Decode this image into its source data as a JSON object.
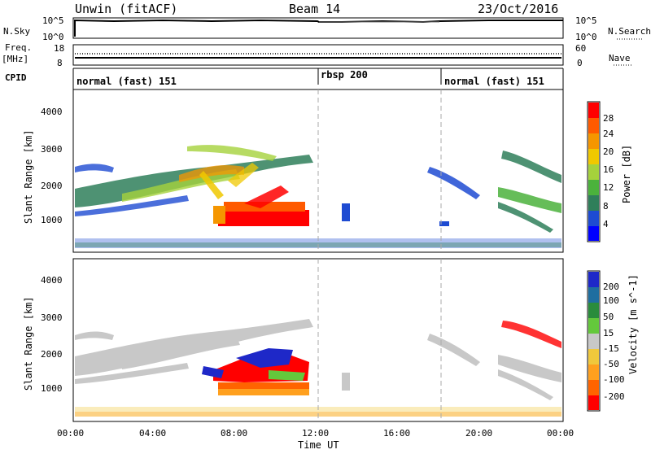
{
  "header": {
    "site": "Unwin (fitACF)",
    "beam": "Beam 14",
    "date": "23/Oct/2016"
  },
  "nsky_panel": {
    "left_label": "N.Sky",
    "right_label": "N.Search",
    "ticks_left": [
      "10^5",
      "10^0"
    ],
    "ticks_right": [
      "10^5",
      "10^0"
    ]
  },
  "freq_panel": {
    "left_label_top": "Freq.",
    "left_label_unit": "[MHz]",
    "right_label": "Nave",
    "ticks_left": [
      "18",
      "8"
    ],
    "ticks_right": [
      "60",
      "0"
    ]
  },
  "cpid_panel": {
    "label": "CPID",
    "segments": [
      {
        "start": 0,
        "end": 12,
        "text": "normal (fast) 151"
      },
      {
        "start": 12,
        "end": 18,
        "text": "rbsp 200"
      },
      {
        "start": 18,
        "end": 24,
        "text": "normal (fast) 151"
      }
    ]
  },
  "chart_data": [
    {
      "type": "heatmap",
      "title": "",
      "xlabel": "",
      "ylabel": "Slant Range [km]",
      "xlim": [
        0,
        24
      ],
      "ylim": [
        0,
        4600
      ],
      "yticks": [
        "1000",
        "2000",
        "3000",
        "4000"
      ],
      "colorbar": {
        "label": "Power [dB]",
        "ticks": [
          "28",
          "24",
          "20",
          "16",
          "12",
          "8",
          "4"
        ],
        "colors": [
          "#0000ff",
          "#1e4bd2",
          "#2f7f5a",
          "#4bb23c",
          "#a5d23c",
          "#f0c800",
          "#f59600",
          "#ff5a00",
          "#ff0000"
        ]
      },
      "cpid_markers": [
        12,
        18
      ]
    },
    {
      "type": "heatmap",
      "title": "",
      "xlabel": "Time UT",
      "ylabel": "Slant Range [km]",
      "xlim": [
        0,
        24
      ],
      "ylim": [
        0,
        4600
      ],
      "yticks": [
        "1000",
        "2000",
        "3000",
        "4000"
      ],
      "xticks": [
        "00:00",
        "04:00",
        "08:00",
        "12:00",
        "16:00",
        "20:00",
        "00:00"
      ],
      "colorbar": {
        "label": "Velocity [m s^-1]",
        "ticks": [
          "200",
          "100",
          "50",
          "15",
          "-15",
          "-50",
          "-100",
          "-200"
        ],
        "colors": [
          "#1e28c8",
          "#1e6ea0",
          "#2a8c3c",
          "#64c83c",
          "#c8c8c8",
          "#f0c83c",
          "#ffa01e",
          "#ff6400",
          "#ff0000"
        ]
      },
      "cpid_markers": [
        12,
        18
      ]
    }
  ]
}
